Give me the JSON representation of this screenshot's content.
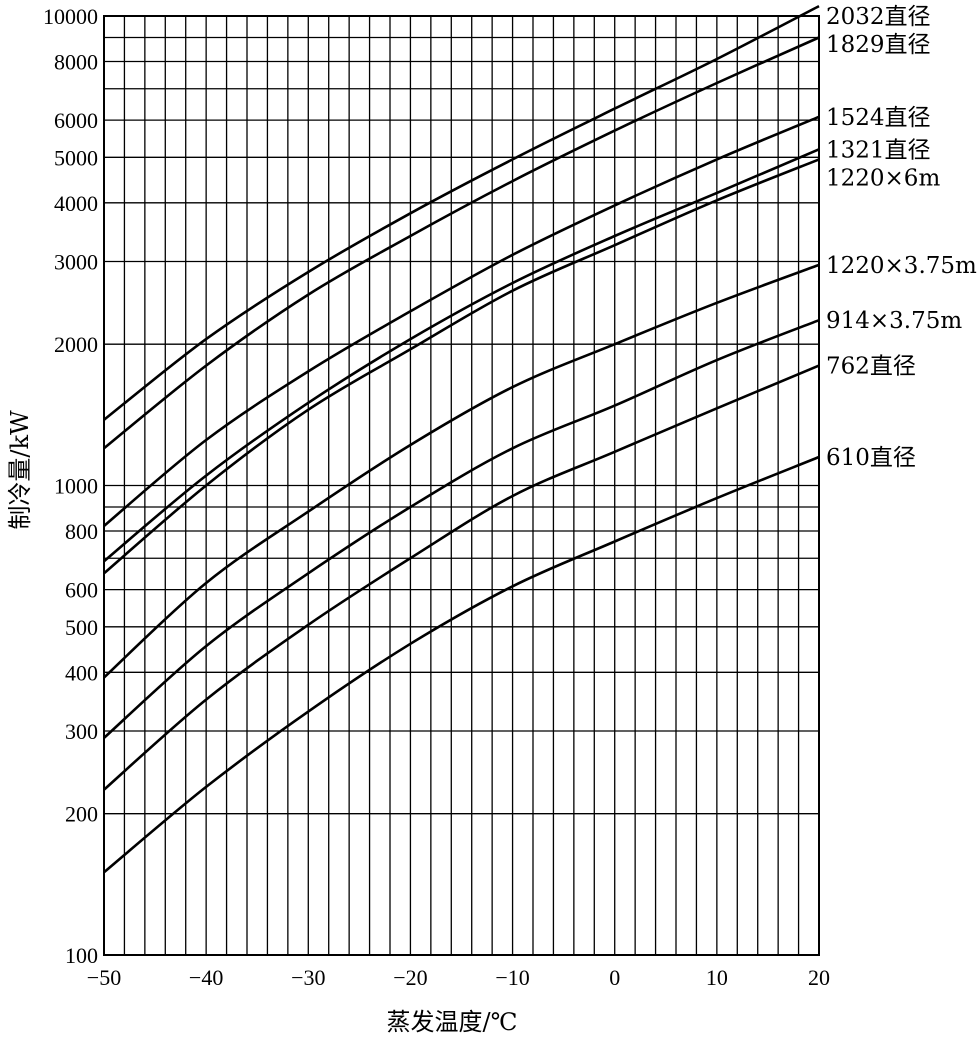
{
  "chart_data": {
    "type": "line",
    "xlabel": "蒸发温度/℃",
    "ylabel": "制冷量/kW",
    "xlim": [
      -50,
      20
    ],
    "ylim": [
      100,
      10000
    ],
    "yscale": "log",
    "grid": true,
    "x_ticks": [
      -50,
      -40,
      -30,
      -20,
      -10,
      0,
      10,
      20
    ],
    "x_tick_labels": [
      "−50",
      "−40",
      "−30",
      "−20",
      "−10",
      "0",
      "10",
      "20"
    ],
    "y_ticks": [
      100,
      200,
      300,
      400,
      500,
      600,
      800,
      1000,
      2000,
      3000,
      4000,
      5000,
      6000,
      8000,
      10000
    ],
    "y_tick_labels": [
      "100",
      "200",
      "300",
      "400",
      "500",
      "600",
      "800",
      "1000",
      "2000",
      "3000",
      "4000",
      "5000",
      "6000",
      "8000",
      "10000"
    ],
    "x": [
      -50,
      -40,
      -30,
      -20,
      -10,
      0,
      10,
      20
    ],
    "series": [
      {
        "name": "2032直径",
        "values": [
          1380,
          2050,
          2850,
          3800,
          4950,
          6350,
          8100,
          10500
        ]
      },
      {
        "name": "1829直径",
        "values": [
          1200,
          1800,
          2550,
          3400,
          4450,
          5700,
          7200,
          9000
        ]
      },
      {
        "name": "1524直径",
        "values": [
          820,
          1250,
          1750,
          2350,
          3100,
          3950,
          4950,
          6100
        ]
      },
      {
        "name": "1321直径",
        "values": [
          690,
          1050,
          1500,
          2050,
          2700,
          3400,
          4200,
          5200
        ]
      },
      {
        "name": "1220×6m",
        "values": [
          650,
          1000,
          1450,
          1950,
          2600,
          3250,
          4050,
          4950
        ]
      },
      {
        "name": "1220×3.75m",
        "values": [
          390,
          620,
          880,
          1220,
          1620,
          2000,
          2450,
          2950
        ]
      },
      {
        "name": "914×3.75m",
        "values": [
          290,
          455,
          650,
          900,
          1200,
          1480,
          1850,
          2250
        ]
      },
      {
        "name": "762直径",
        "values": [
          225,
          350,
          505,
          700,
          950,
          1180,
          1460,
          1800
        ]
      },
      {
        "name": "610直径",
        "values": [
          150,
          228,
          330,
          460,
          610,
          760,
          940,
          1150
        ]
      }
    ]
  }
}
